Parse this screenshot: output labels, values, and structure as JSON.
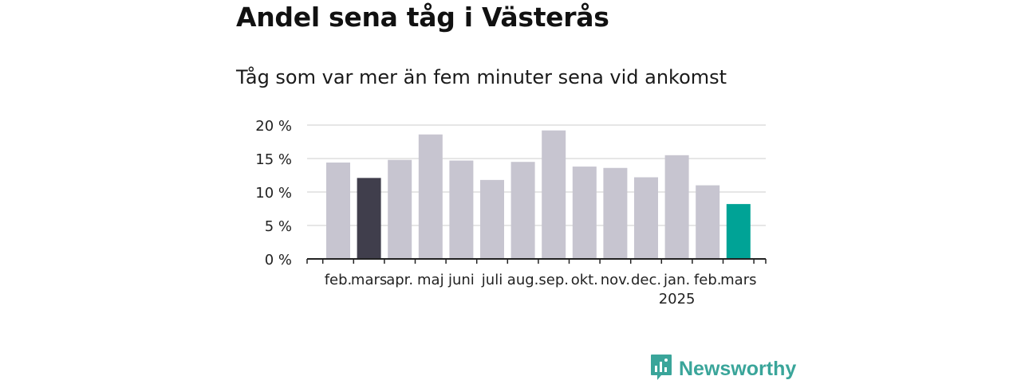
{
  "title": "Andel sena tåg i Västerås",
  "subtitle": "Tåg som var mer än fem minuter sena vid ankomst",
  "brand": {
    "name": "Newsworthy",
    "icon": "newsworthy-logo-icon",
    "color": "#3aa59a"
  },
  "chart_data": {
    "type": "bar",
    "categories": [
      "feb.",
      "mars",
      "apr.",
      "maj",
      "juni",
      "juli",
      "aug.",
      "sep.",
      "okt.",
      "nov.",
      "dec.",
      "jan.",
      "feb.",
      "mars"
    ],
    "category_labels": [
      "feb.",
      "mars",
      "apr.",
      "maj",
      "juni",
      "juli",
      "aug.",
      "sep.",
      "okt.",
      "nov.",
      "dec.",
      "jan.",
      "feb.",
      "mars"
    ],
    "year_label": {
      "index": 11,
      "text": "2025"
    },
    "values": [
      14.4,
      12.1,
      14.8,
      18.6,
      14.7,
      11.8,
      14.5,
      19.2,
      13.8,
      13.6,
      12.2,
      15.5,
      11.0,
      8.2
    ],
    "bar_colors": [
      "#c7c5d0",
      "#403e4c",
      "#c7c5d0",
      "#c7c5d0",
      "#c7c5d0",
      "#c7c5d0",
      "#c7c5d0",
      "#c7c5d0",
      "#c7c5d0",
      "#c7c5d0",
      "#c7c5d0",
      "#c7c5d0",
      "#c7c5d0",
      "#00a396"
    ],
    "y_ticks": [
      0,
      5,
      10,
      15,
      20
    ],
    "y_tick_labels": [
      "0 %",
      "5 %",
      "10 %",
      "15 %",
      "20 %"
    ],
    "ylim": [
      0,
      20
    ],
    "xlabel": "",
    "ylabel": "",
    "grid": true,
    "legend": "none"
  }
}
